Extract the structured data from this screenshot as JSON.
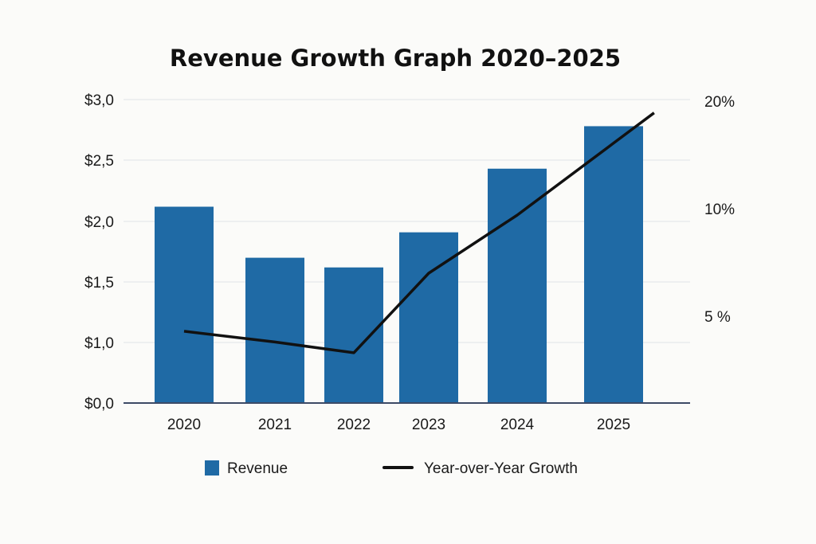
{
  "chart_data": {
    "type": "bar+line",
    "title": "Revenue Growth Graph 2020–2025",
    "categories": [
      "2020",
      "2021",
      "2022",
      "2023",
      "2024",
      "2025"
    ],
    "series": [
      {
        "name": "Revenue",
        "type": "bar",
        "axis": "left",
        "color": "#1f6aa5",
        "values": [
          2.12,
          1.7,
          1.62,
          1.91,
          2.43,
          2.78
        ]
      },
      {
        "name": "Year-over-Year Growth",
        "type": "line",
        "axis": "right",
        "color": "#111111",
        "values": [
          4.3,
          3.8,
          3.3,
          7.0,
          9.7,
          16.1
        ]
      }
    ],
    "left_axis": {
      "ticks": [
        0,
        1.0,
        1.5,
        2.0,
        2.5,
        3.0
      ],
      "tick_labels": [
        "$0,0",
        "$1,0",
        "$1,5",
        "$2,0",
        "$2,5",
        "$3,0"
      ]
    },
    "right_axis": {
      "ticks": [
        5,
        10,
        20
      ],
      "tick_labels": [
        "5 %",
        "10%",
        "20%"
      ]
    },
    "grid": true,
    "legend_position": "bottom"
  }
}
